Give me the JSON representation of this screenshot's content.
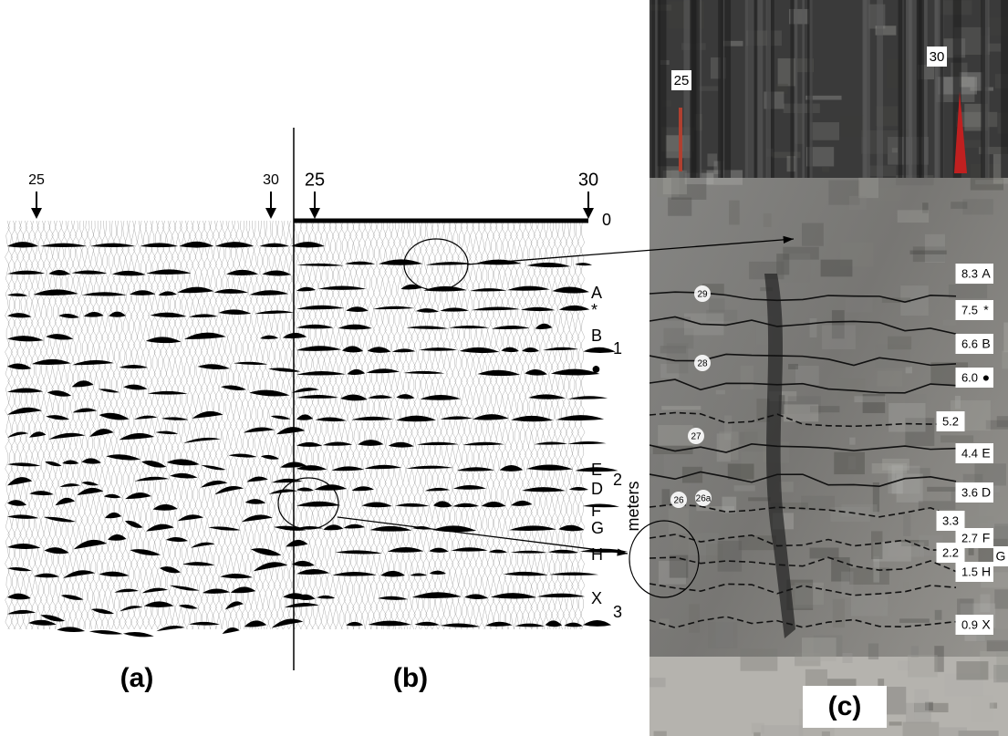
{
  "panel_a": {
    "label": "(a)",
    "trace_labels": [
      "25",
      "30"
    ]
  },
  "panel_b": {
    "label": "(b)",
    "trace_labels": [
      "25",
      "30"
    ],
    "horizons": [
      "A",
      "*",
      "B",
      "●",
      "E",
      "D",
      "F",
      "G",
      "H",
      "X"
    ],
    "depth_ticks": [
      "0",
      "1",
      "2",
      "3"
    ],
    "depth_axis_label": "meters"
  },
  "panel_c": {
    "label": "(c)",
    "stakes": [
      "25",
      "30"
    ],
    "markers": [
      "29",
      "28",
      "27",
      "26",
      "26a"
    ],
    "depths": [
      "8.3",
      "7.5",
      "6.6",
      "6.0",
      "5.2",
      "4.4",
      "3.6",
      "3.3",
      "2.7",
      "2.2",
      "1.5",
      "0.9"
    ],
    "horizons": [
      "A",
      "*",
      "B",
      "●",
      "E",
      "D",
      "F",
      "H",
      "G",
      "X"
    ]
  }
}
